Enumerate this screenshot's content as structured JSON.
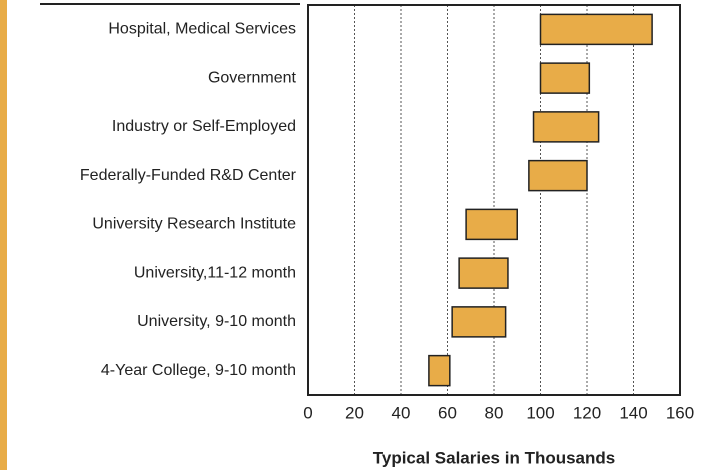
{
  "chart_data": {
    "type": "floating-bar",
    "orientation": "horizontal",
    "xlabel": "Typical Salaries in Thousands",
    "categories": [
      "Hospital, Medical Services",
      "Government",
      "Industry or Self-Employed",
      "Federally-Funded R&D Center",
      "University Research Institute",
      "University,11-12 month",
      "University, 9-10 month",
      "4-Year College, 9-10 month"
    ],
    "values": [
      [
        100,
        148
      ],
      [
        100,
        121
      ],
      [
        97,
        125
      ],
      [
        95,
        120
      ],
      [
        68,
        90
      ],
      [
        65,
        86
      ],
      [
        62,
        85
      ],
      [
        52,
        61
      ]
    ],
    "color": "#e8ac48",
    "xlim": [
      0,
      160
    ],
    "xticks": [
      0,
      20,
      40,
      60,
      80,
      100,
      120,
      140,
      160
    ],
    "grid": true
  }
}
